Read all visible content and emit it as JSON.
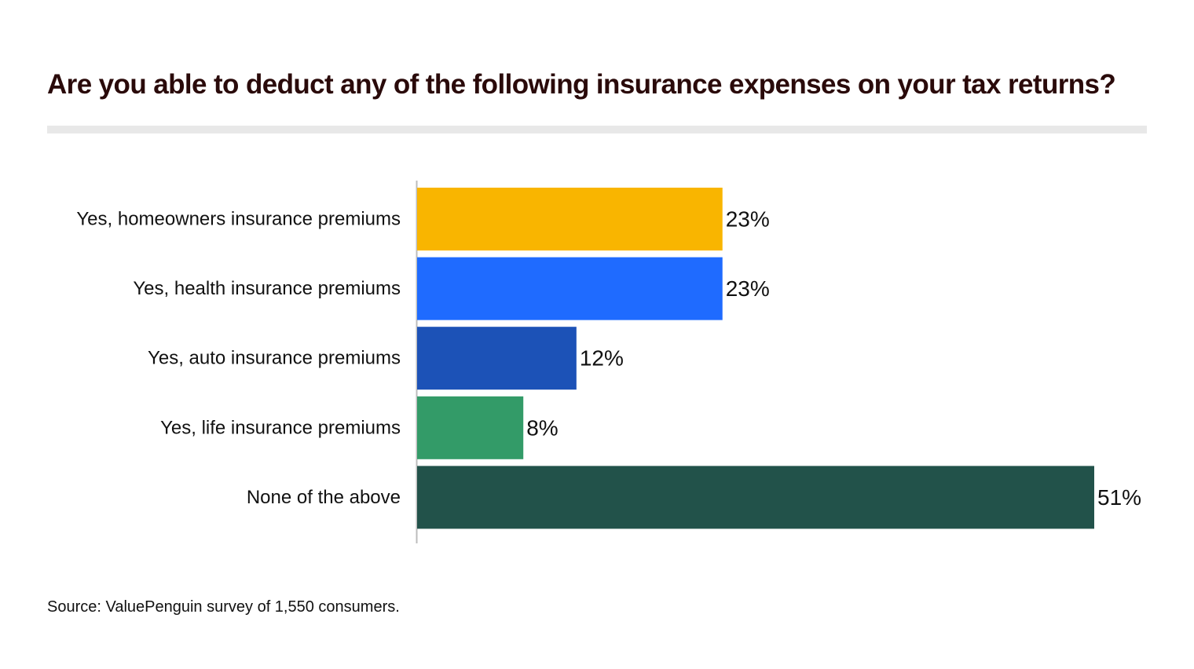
{
  "chart_data": {
    "type": "bar",
    "orientation": "horizontal",
    "title": "Are you able to deduct any of the following insurance expenses on your tax returns?",
    "categories": [
      "Yes, homeowners insurance premiums",
      "Yes, health insurance premiums",
      "Yes, auto insurance premiums",
      "Yes, life insurance premiums",
      "None of the above"
    ],
    "values": [
      23,
      23,
      12,
      8,
      51
    ],
    "value_labels": [
      "23%",
      "23%",
      "12%",
      "8%",
      "51%"
    ],
    "bar_colors": [
      "#F9B500",
      "#1F6BFF",
      "#1C52B7",
      "#339B68",
      "#22524A"
    ],
    "xlim": [
      0,
      51
    ],
    "xlabel": "",
    "ylabel": "",
    "grid": false,
    "legend": "none",
    "source": "Source: ValuePenguin survey of 1,550 consumers."
  },
  "colors": {
    "title": "#2A0A0A",
    "rule": "#E8E8E8",
    "axis": "#BDBDBD",
    "text": "#111111"
  }
}
